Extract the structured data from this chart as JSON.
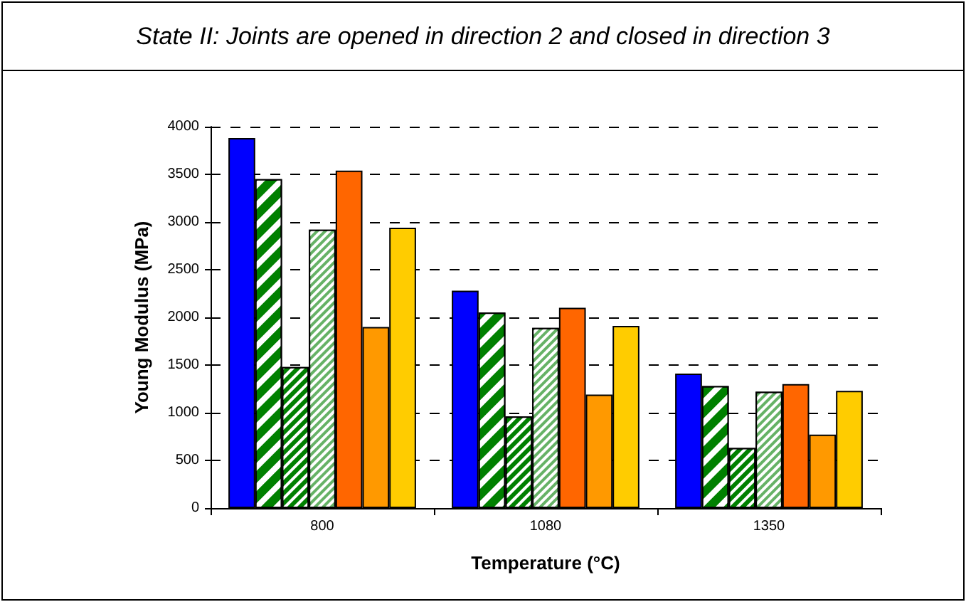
{
  "chart_data": {
    "type": "bar",
    "title": "State II: Joints are opened in direction 2 and closed in direction 3",
    "xlabel": "Temperature (°C)",
    "ylabel": "Young Modulus (MPa)",
    "categories": [
      "800",
      "1080",
      "1350"
    ],
    "series": [
      {
        "color": "#0000ff",
        "values": [
          3880,
          2280,
          1410
        ]
      },
      {
        "color": "#008000",
        "values": [
          3450,
          2050,
          1280
        ]
      },
      {
        "color": "#008000",
        "values": [
          1480,
          960,
          630
        ]
      },
      {
        "color": "#66b266",
        "values": [
          2920,
          1890,
          1220
        ]
      },
      {
        "color": "#ff6600",
        "values": [
          3540,
          2100,
          1300
        ]
      },
      {
        "color": "#ff9900",
        "values": [
          1900,
          1190,
          770
        ]
      },
      {
        "color": "#ffcc00",
        "values": [
          2940,
          1910,
          1230
        ]
      }
    ],
    "ylim": [
      0,
      4000
    ],
    "yticks": [
      0,
      500,
      1000,
      1500,
      2000,
      2500,
      3000,
      3500,
      4000
    ],
    "grid": "y"
  }
}
